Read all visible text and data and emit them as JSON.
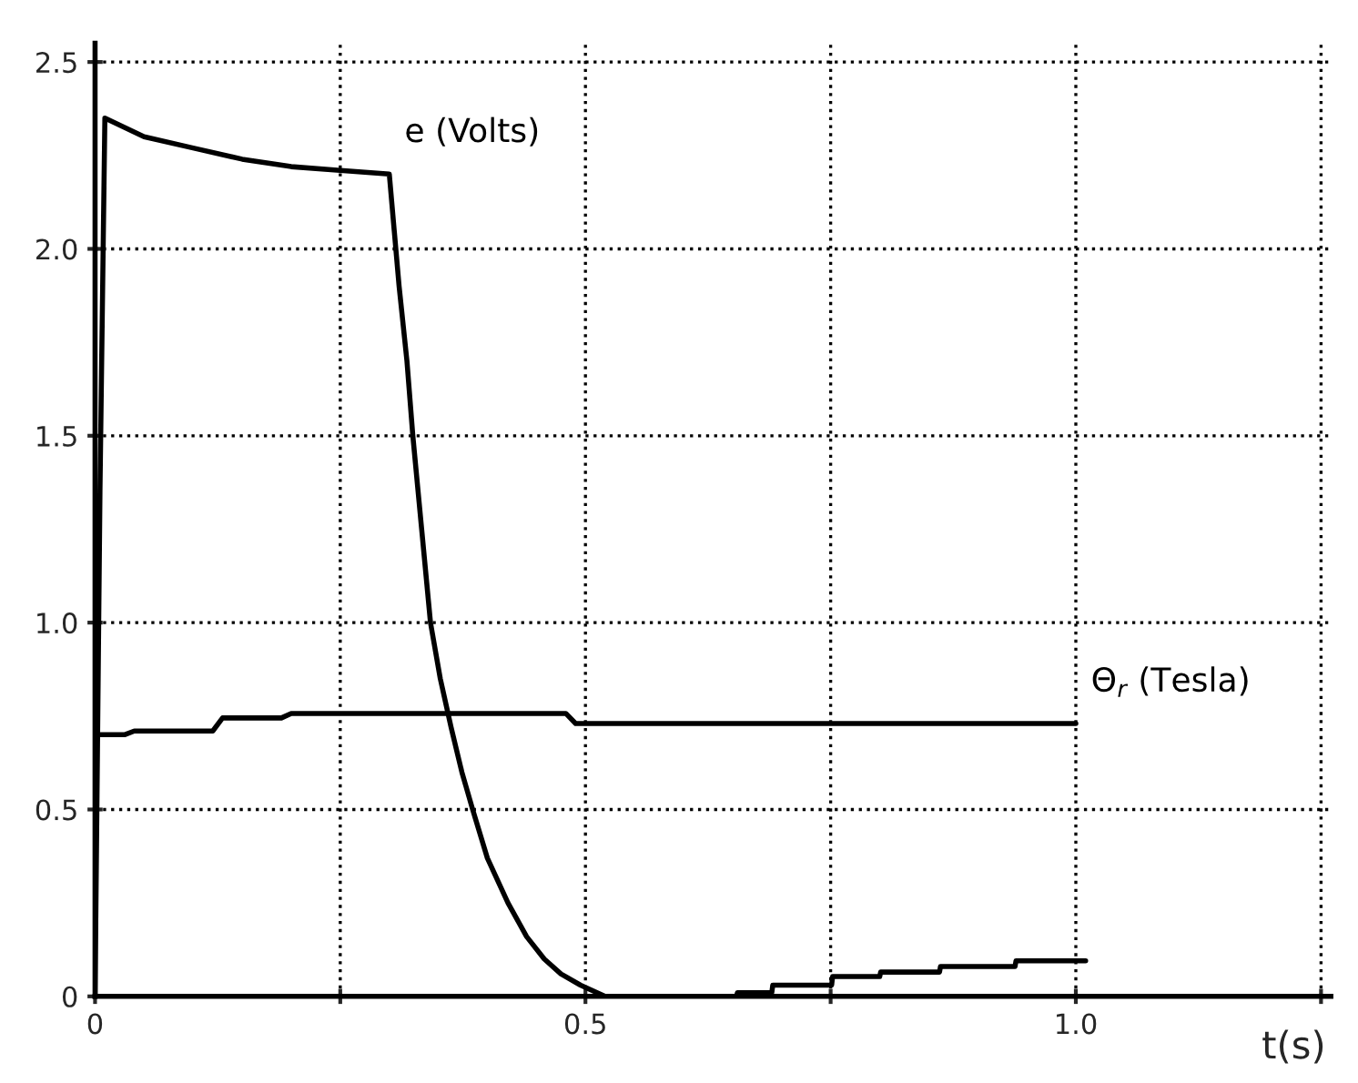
{
  "chart_data": {
    "type": "line",
    "xlabel": "t(s)",
    "xlim": [
      0,
      1.26
    ],
    "ylim": [
      0,
      2.55
    ],
    "xticks": [
      0,
      {
        "value": 0.25,
        "label": null
      },
      {
        "value": 0.5,
        "label": "0.5"
      },
      {
        "value": 0.75,
        "label": null
      },
      {
        "value": 1.0,
        "label": "1.0"
      },
      {
        "value": 1.25,
        "label": null
      }
    ],
    "yticks": [
      0,
      {
        "value": 0.5,
        "label": "0.5"
      },
      {
        "value": 1.0,
        "label": "1.0"
      },
      {
        "value": 1.5,
        "label": "1.5"
      },
      {
        "value": 2.0,
        "label": "2.0"
      },
      {
        "value": 2.5,
        "label": "2.5"
      }
    ],
    "grid": true,
    "line_style": "solid",
    "marker": "none",
    "series": [
      {
        "name": "e (Volts)",
        "color": "#000000",
        "x": [
          0,
          0.005,
          0.01,
          0.05,
          0.1,
          0.15,
          0.2,
          0.25,
          0.3,
          0.305,
          0.31,
          0.318,
          0.324,
          0.333,
          0.342,
          0.352,
          0.363,
          0.374,
          0.385,
          0.4,
          0.421,
          0.44,
          0.458,
          0.475,
          0.495,
          0.52,
          0.6,
          0.654,
          0.655,
          0.69,
          0.691,
          0.751,
          0.752,
          0.8,
          0.801,
          0.861,
          0.862,
          0.938,
          0.939,
          1.01
        ],
        "values": [
          0,
          1.35,
          2.35,
          2.3,
          2.27,
          2.24,
          2.22,
          2.21,
          2.2,
          2.05,
          1.9,
          1.7,
          1.5,
          1.25,
          1.0,
          0.85,
          0.72,
          0.6,
          0.5,
          0.37,
          0.25,
          0.16,
          0.1,
          0.06,
          0.03,
          0.0,
          0.0,
          0.0,
          0.01,
          0.01,
          0.03,
          0.03,
          0.053,
          0.053,
          0.065,
          0.065,
          0.08,
          0.08,
          0.095,
          0.095
        ]
      },
      {
        "name": "Θ$_{r}$ (Tesla)",
        "color": "#000000",
        "x": [
          0,
          0.03,
          0.04,
          0.12,
          0.13,
          0.19,
          0.2,
          0.48,
          0.49,
          1.0
        ],
        "values": [
          0.7,
          0.7,
          0.71,
          0.71,
          0.745,
          0.745,
          0.757,
          0.757,
          0.73,
          0.73
        ]
      }
    ]
  }
}
